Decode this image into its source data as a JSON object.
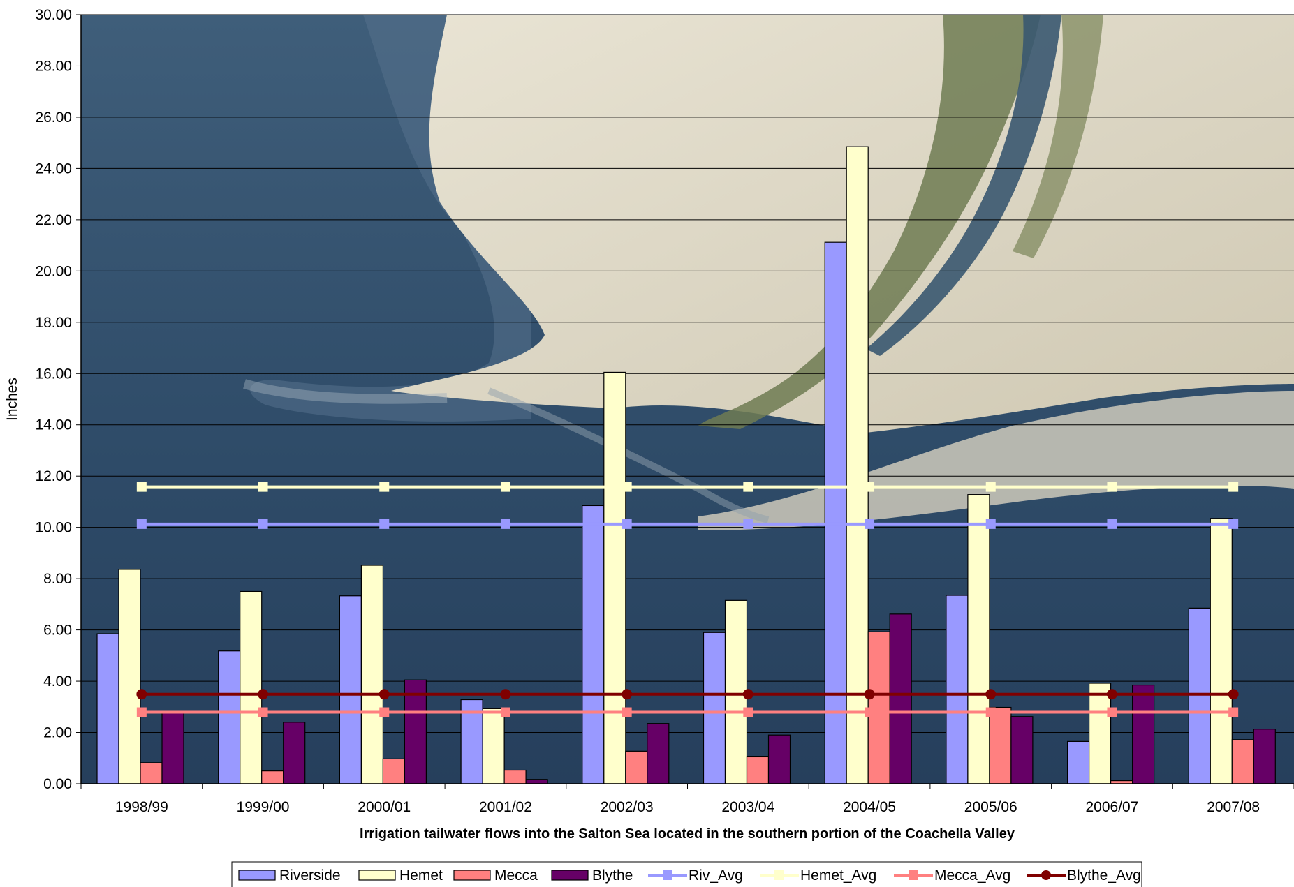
{
  "chart_data": {
    "type": "bar",
    "xlabel": "Irrigation tailwater flows into the Salton Sea located in the southern portion of the Coachella Valley",
    "ylabel": "Inches",
    "ylim": [
      0,
      30
    ],
    "ytick_step": 2,
    "ytick_format_decimals": 2,
    "grid": "horizontal",
    "legend_position": "bottom",
    "background": "aerial photograph of the Salton Sea shoreline",
    "categories": [
      "1998/99",
      "1999/00",
      "2000/01",
      "2001/02",
      "2002/03",
      "2003/04",
      "2004/05",
      "2005/06",
      "2006/07",
      "2007/08"
    ],
    "bar_series": [
      {
        "name": "Riverside",
        "color": "#9999ff",
        "values": [
          5.85,
          5.18,
          7.33,
          3.28,
          10.85,
          5.9,
          21.12,
          7.35,
          1.65,
          6.85
        ]
      },
      {
        "name": "Hemet",
        "color": "#ffffcc",
        "values": [
          8.36,
          7.5,
          8.52,
          2.93,
          16.05,
          7.15,
          24.85,
          11.28,
          3.92,
          10.35
        ]
      },
      {
        "name": "Mecca",
        "color": "#ff8080",
        "values": [
          0.82,
          0.5,
          0.97,
          0.53,
          1.27,
          1.05,
          5.93,
          2.98,
          0.12,
          1.72
        ]
      },
      {
        "name": "Blythe",
        "color": "#660066",
        "values": [
          2.82,
          2.4,
          4.05,
          0.17,
          2.35,
          1.9,
          6.62,
          2.62,
          3.85,
          2.13
        ]
      }
    ],
    "line_series": [
      {
        "name": "Riv_Avg",
        "color": "#9999ff",
        "marker": "square",
        "value": 10.13
      },
      {
        "name": "Hemet_Avg",
        "color": "#ffffcc",
        "marker": "square",
        "value": 11.58
      },
      {
        "name": "Mecca_Avg",
        "color": "#ff8080",
        "marker": "square",
        "value": 2.79
      },
      {
        "name": "Blythe_Avg",
        "color": "#800000",
        "marker": "circle",
        "value": 3.49
      }
    ]
  }
}
